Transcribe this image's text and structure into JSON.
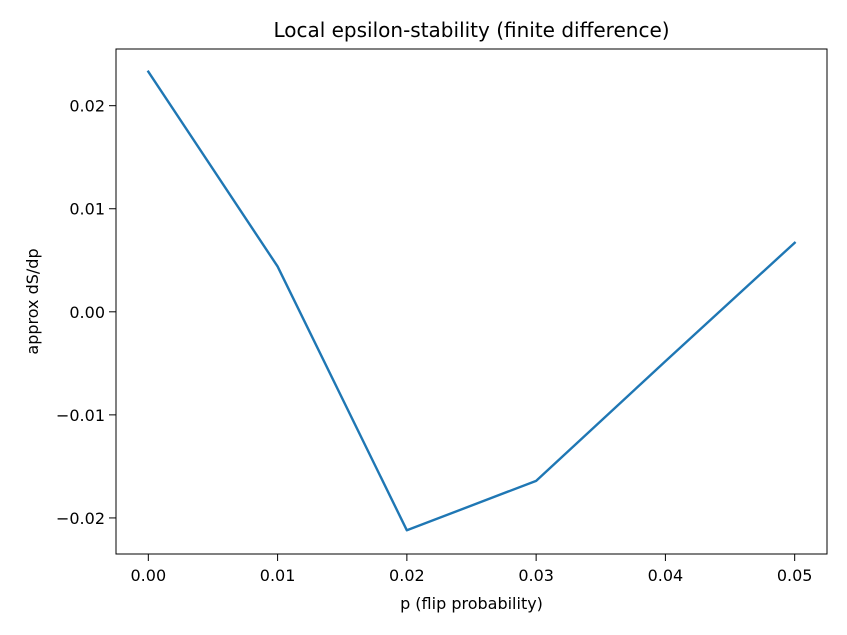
{
  "chart_data": {
    "type": "line",
    "title": "Local epsilon-stability (finite difference)",
    "xlabel": "p (flip probability)",
    "ylabel": "approx dS/dp",
    "xlim": [
      -0.0025,
      0.0525
    ],
    "ylim": [
      -0.0235,
      0.0255
    ],
    "xticks": [
      0.0,
      0.01,
      0.02,
      0.03,
      0.04,
      0.05
    ],
    "xtick_labels": [
      "0.00",
      "0.01",
      "0.02",
      "0.03",
      "0.04",
      "0.05"
    ],
    "yticks": [
      -0.02,
      -0.01,
      0.0,
      0.01,
      0.02
    ],
    "ytick_labels": [
      "−0.02",
      "−0.01",
      "0.00",
      "0.01",
      "0.02"
    ],
    "grid": false,
    "series": [
      {
        "color": "#1f77b4",
        "x": [
          0.0,
          0.01,
          0.02,
          0.03,
          0.04,
          0.05
        ],
        "y": [
          0.0233,
          0.0044,
          -0.0212,
          -0.0164,
          -0.0048,
          0.0067
        ]
      }
    ]
  }
}
